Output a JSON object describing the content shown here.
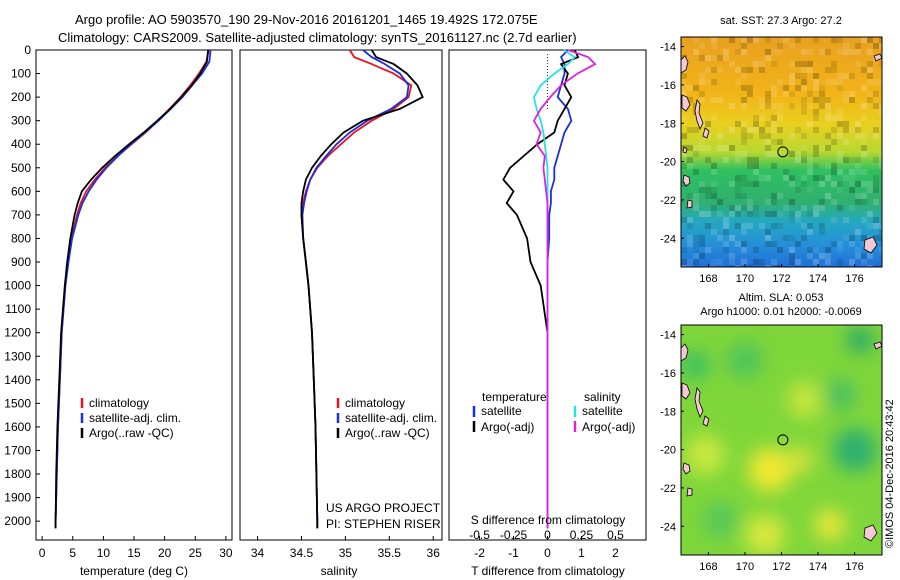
{
  "header": {
    "line1": "Argo profile: AO 5903570_190 29-Nov-2016 20161201_1465 19.492S 172.075E",
    "line2": "Climatology: CARS2009. Satellite-adjusted climatology: synTS_20161127.nc (2.7d earlier)"
  },
  "colors": {
    "climatology": "#e8141e",
    "satellite": "#1a2ee0",
    "argo": "#000000",
    "sat_salinity": "#21e3e6",
    "argo_salinity": "#e020e0"
  },
  "chart_data": [
    {
      "type": "line",
      "id": "temperature",
      "xlabel": "temperature (deg C)",
      "ylabel": "",
      "xlim": [
        -1,
        31
      ],
      "ylim": [
        2080,
        0
      ],
      "xticks": [
        0,
        5,
        10,
        15,
        20,
        25,
        30
      ],
      "yticks": [
        0,
        100,
        200,
        300,
        400,
        500,
        600,
        700,
        800,
        900,
        1000,
        1100,
        1200,
        1300,
        1400,
        1500,
        1600,
        1700,
        1800,
        1900,
        2000
      ],
      "depth": [
        0,
        50,
        100,
        150,
        200,
        250,
        300,
        350,
        400,
        450,
        500,
        550,
        600,
        650,
        700,
        800,
        900,
        1000,
        1200,
        1400,
        1600,
        1800,
        2000,
        2030
      ],
      "series": [
        {
          "name": "climatology",
          "values": [
            27.2,
            26.8,
            25.6,
            24.2,
            22.6,
            20.8,
            18.9,
            16.9,
            14.6,
            12.3,
            10.3,
            8.6,
            7.2,
            6.3,
            5.7,
            4.8,
            4.2,
            3.8,
            3.2,
            2.9,
            2.6,
            2.4,
            2.2,
            2.2
          ]
        },
        {
          "name": "satellite-adj. clim.",
          "values": [
            27.5,
            27.3,
            26.1,
            24.5,
            22.9,
            21.0,
            19.0,
            16.8,
            14.5,
            12.4,
            10.5,
            8.9,
            7.6,
            6.6,
            5.9,
            4.9,
            4.3,
            3.8,
            3.2,
            2.9,
            2.6,
            2.4,
            2.2,
            2.2
          ]
        },
        {
          "name": "Argo(..raw -QC)",
          "values": [
            27.1,
            26.9,
            25.8,
            24.4,
            22.7,
            20.9,
            18.8,
            16.6,
            14.2,
            11.9,
            9.8,
            8.0,
            6.5,
            5.8,
            5.3,
            4.6,
            4.1,
            3.7,
            3.1,
            2.8,
            2.5,
            2.3,
            2.2,
            2.2
          ]
        }
      ],
      "legend": [
        "climatology",
        "satellite-adj. clim.",
        "Argo(..raw -QC)"
      ]
    },
    {
      "type": "line",
      "id": "salinity",
      "xlabel": "salinity",
      "xlim": [
        33.8,
        36.1
      ],
      "ylim": [
        2080,
        0
      ],
      "xticks": [
        34,
        34.5,
        35,
        35.5,
        36
      ],
      "xticklabels": [
        "34",
        "34.5",
        "35",
        "35.5",
        "36"
      ],
      "depth": [
        0,
        30,
        60,
        100,
        150,
        200,
        250,
        300,
        350,
        400,
        450,
        500,
        550,
        600,
        650,
        700,
        800,
        900,
        1000,
        1200,
        1400,
        1600,
        1800,
        2000,
        2030
      ],
      "series": [
        {
          "name": "climatology",
          "values": [
            35.05,
            35.1,
            35.3,
            35.55,
            35.75,
            35.72,
            35.55,
            35.3,
            35.1,
            34.95,
            34.8,
            34.68,
            34.6,
            34.55,
            34.52,
            34.5,
            34.52,
            34.55,
            34.58,
            34.62,
            34.64,
            34.66,
            34.67,
            34.68,
            34.68
          ]
        },
        {
          "name": "satellite-adj. clim.",
          "values": [
            35.2,
            35.3,
            35.45,
            35.62,
            35.72,
            35.7,
            35.52,
            35.25,
            35.05,
            34.9,
            34.78,
            34.67,
            34.6,
            34.56,
            34.53,
            34.51,
            34.52,
            34.55,
            34.58,
            34.62,
            34.64,
            34.66,
            34.67,
            34.68,
            34.68
          ]
        },
        {
          "name": "Argo(..raw -QC)",
          "values": [
            35.3,
            35.35,
            35.55,
            35.7,
            35.82,
            35.88,
            35.62,
            35.2,
            34.98,
            34.84,
            34.72,
            34.62,
            34.55,
            34.52,
            34.5,
            34.5,
            34.52,
            34.55,
            34.58,
            34.62,
            34.64,
            34.66,
            34.67,
            34.68,
            34.68
          ]
        }
      ],
      "legend": [
        "climatology",
        "satellite-adj. clim.",
        "Argo(..raw -QC)"
      ],
      "annotation": [
        "US ARGO PROJECT",
        "PI: STEPHEN RISER"
      ]
    },
    {
      "type": "line",
      "id": "difference",
      "xlabel": "T difference from climatology",
      "xlabel_top": "S difference from climatology",
      "xlim": [
        -2.9,
        2.9
      ],
      "ylim": [
        2080,
        0
      ],
      "xticks": [
        -2,
        -1,
        0,
        1,
        2
      ],
      "xticklabels": [
        "-2",
        "-1",
        "0",
        "1",
        "2"
      ],
      "sticks": [
        -0.5,
        -0.25,
        0,
        0.25,
        0.5
      ],
      "sticklabels": [
        "-0.5",
        "-0.25",
        "0",
        "0.25",
        "0.5"
      ],
      "depth": [
        0,
        30,
        60,
        100,
        150,
        200,
        250,
        300,
        350,
        400,
        450,
        500,
        550,
        600,
        650,
        700,
        800,
        900,
        1000,
        1200,
        1400,
        1600,
        1800,
        2000,
        2030
      ],
      "series": [
        {
          "name": "temperature satellite",
          "values": [
            0.6,
            0.4,
            0.5,
            0.5,
            0.4,
            0.3,
            0.6,
            0.7,
            0.5,
            0.4,
            0.3,
            0.2,
            0.2,
            0.1,
            0.1,
            0.05,
            0.05,
            0.0,
            0.0,
            0.0,
            0.0,
            0.0,
            0.0,
            0.0,
            0.0
          ]
        },
        {
          "name": "temperature Argo(-adj)",
          "values": [
            0.8,
            0.9,
            0.4,
            0.6,
            0.5,
            0.7,
            0.5,
            0.3,
            0.2,
            -0.3,
            -0.7,
            -1.1,
            -1.3,
            -1.0,
            -1.2,
            -0.9,
            -0.6,
            -0.5,
            -0.2,
            0.0,
            0.0,
            0.0,
            0.0,
            0.0,
            0.0
          ]
        },
        {
          "name": "salinity satellite",
          "values": [
            0.12,
            0.2,
            0.15,
            0.05,
            -0.05,
            -0.1,
            -0.08,
            -0.05,
            -0.03,
            -0.02,
            -0.01,
            0.0,
            0.0,
            0.0,
            0.0,
            0.0,
            0.0,
            0.0,
            0.0,
            0.0,
            0.0,
            0.0,
            0.0,
            0.0,
            0.0
          ]
        },
        {
          "name": "salinity Argo(-adj)",
          "values": [
            0.15,
            0.3,
            0.35,
            0.22,
            0.1,
            0.02,
            -0.05,
            -0.1,
            -0.05,
            -0.08,
            -0.02,
            -0.03,
            -0.02,
            -0.01,
            0.0,
            0.0,
            0.0,
            0.0,
            0.0,
            0.0,
            0.0,
            0.0,
            0.0,
            0.0,
            0.0
          ]
        }
      ],
      "legend_headers": [
        "temperature",
        "salinity"
      ],
      "legend": [
        "satellite",
        "Argo(-adj)",
        "satellite",
        "Argo(-adj)"
      ]
    },
    {
      "type": "heatmap",
      "id": "sst_map",
      "title": "sat. SST: 27.3 Argo: 27.2",
      "xlim": [
        166.5,
        177.5
      ],
      "ylim": [
        -25.5,
        -13.5
      ],
      "xticks": [
        168,
        170,
        172,
        174,
        176
      ],
      "yticks": [
        -14,
        -16,
        -18,
        -20,
        -22,
        -24
      ],
      "argo_position": [
        172.075,
        -19.492
      ]
    },
    {
      "type": "heatmap",
      "id": "sla_map",
      "title": "Altim. SLA: 0.053",
      "subtitle": "Argo h1000: 0.01 h2000: -0.0069",
      "xlim": [
        166.5,
        177.5
      ],
      "ylim": [
        -25.5,
        -13.5
      ],
      "xticks": [
        168,
        170,
        172,
        174,
        176
      ],
      "yticks": [
        -14,
        -16,
        -18,
        -20,
        -22,
        -24
      ],
      "argo_position": [
        172.075,
        -19.492
      ]
    }
  ],
  "footer": {
    "credit": "©IMOS 04-Dec-2016 20:43:42"
  }
}
